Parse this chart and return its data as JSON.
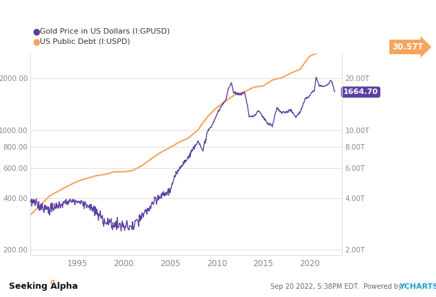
{
  "legend_gold_label": "Gold Price in US Dollars (I:GPUSD)",
  "legend_debt_label": "US Public Debt (I:USPD)",
  "gold_label": "1664.70",
  "debt_label": "30.57T",
  "gold_color": "#5b3fa0",
  "debt_color": "#f5a55a",
  "background_color": "#ffffff",
  "grid_color": "#dedede",
  "tick_color": "#888888",
  "left_yticks": [
    200,
    400,
    600,
    800,
    1000,
    2000
  ],
  "left_yticklabels": [
    "200.00",
    "400.00",
    "600.00",
    "800.00",
    "1000.00",
    "2000.00"
  ],
  "right_yticks": [
    200,
    400,
    600,
    800,
    1000,
    2000
  ],
  "right_yticklabels": [
    "2.00T",
    "4.00T",
    "6.00T",
    "8.00T",
    "10.00T",
    "20.00T"
  ],
  "xticks": [
    1995,
    2000,
    2005,
    2010,
    2015,
    2020
  ],
  "xticklabels": [
    "1995",
    "2000",
    "2005",
    "2010",
    "2015",
    "2020"
  ],
  "xlim": [
    1990.0,
    2023.5
  ],
  "ylim": [
    185,
    2800
  ],
  "footer_left1": "Seeking Alpha",
  "footer_left2": "α",
  "footer_right": "Sep 20 2022, 5:38PM EDT.  Powered by ",
  "footer_ycharts": "YCHARTS"
}
